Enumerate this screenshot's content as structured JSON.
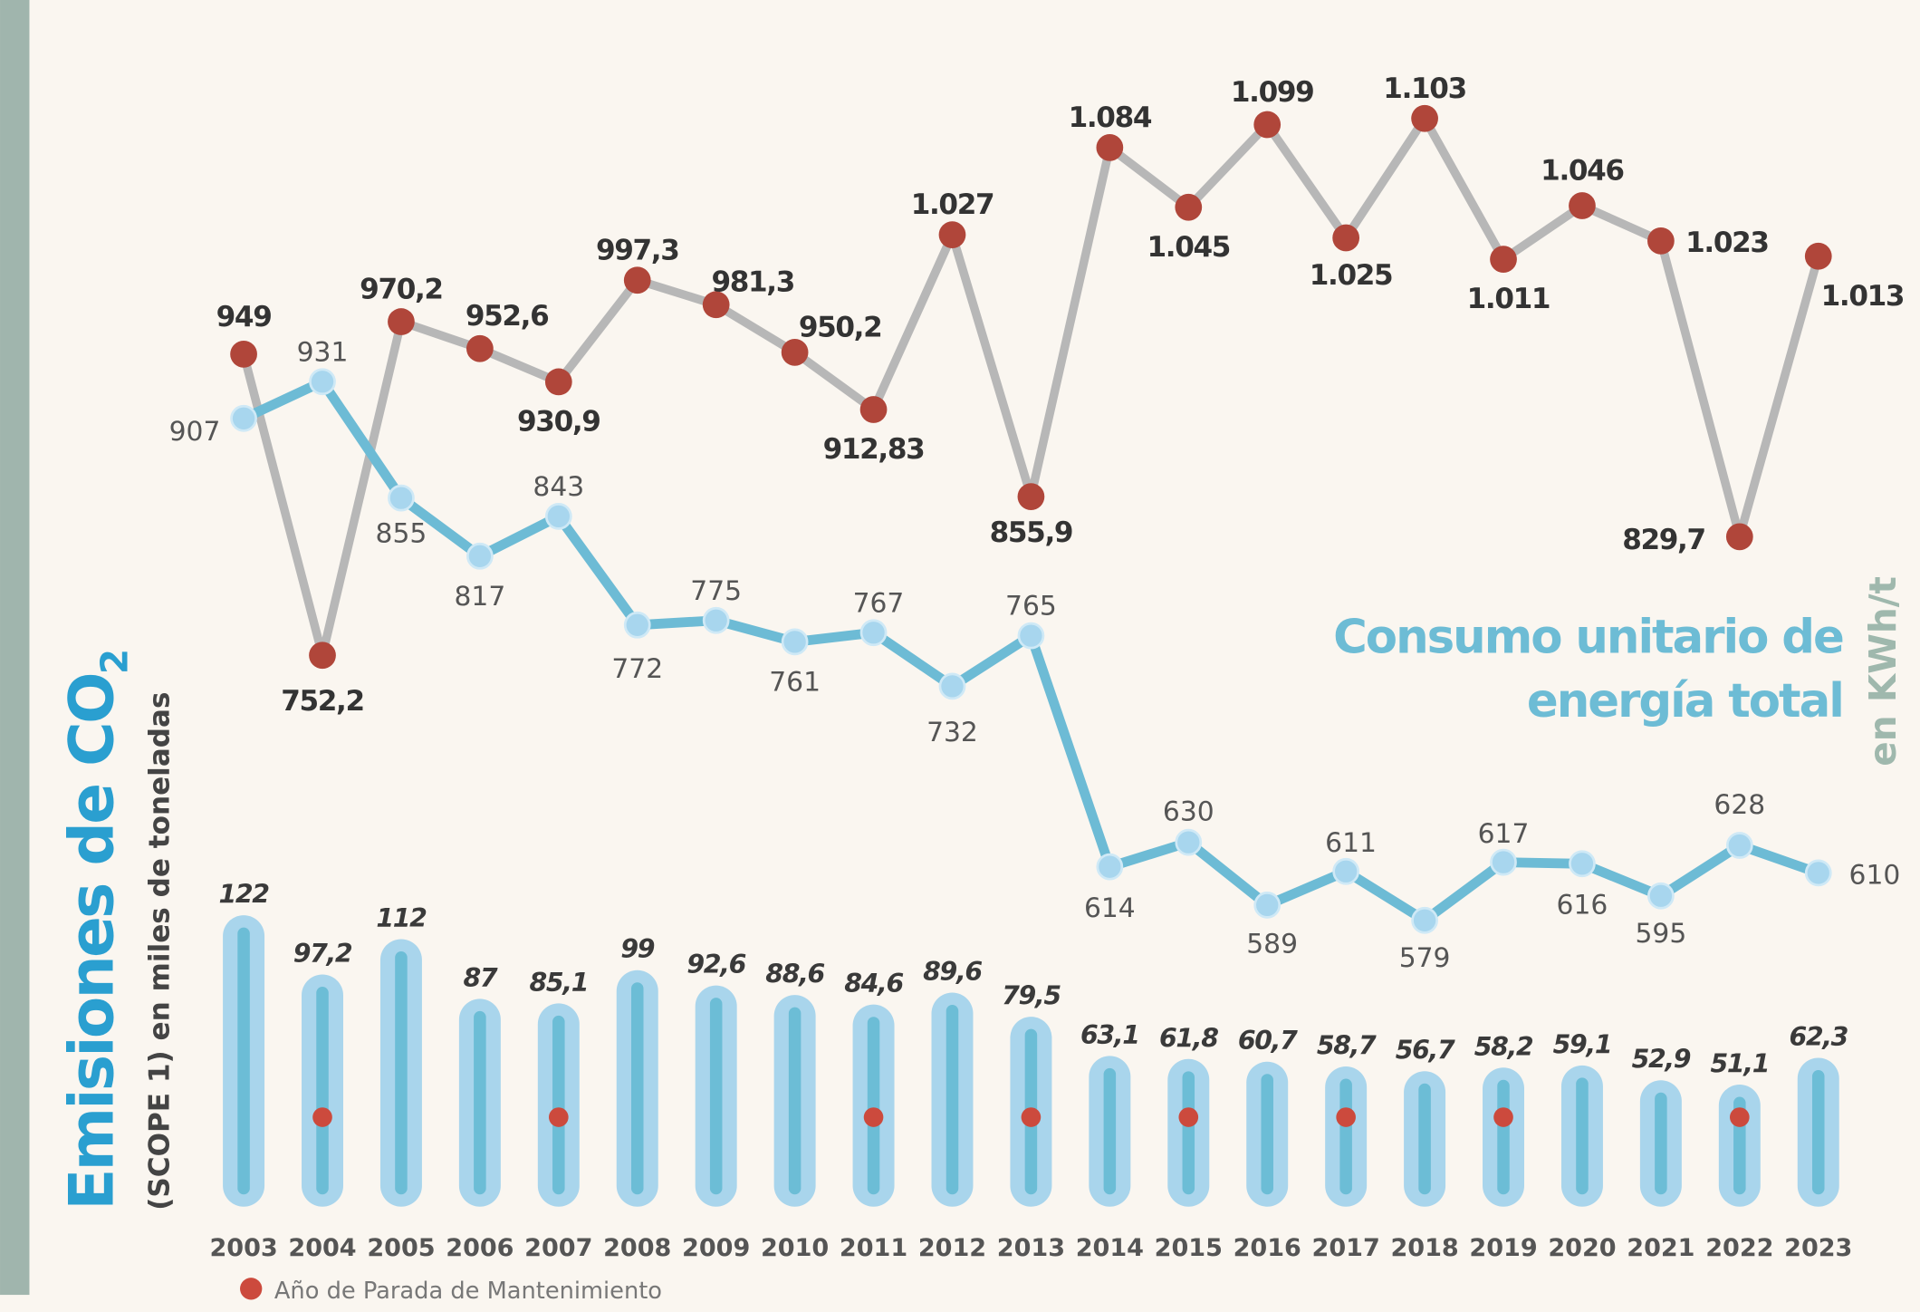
{
  "chart_data": {
    "type": "line",
    "title": "Consumo unitario de energía total",
    "y_label": "en KWh/t",
    "y2_label": {
      "main": "Emisiones de CO",
      "sub": "2",
      "note": "(SCOPE 1) en miles de toneladas"
    },
    "categories": [
      "2003",
      "2004",
      "2005",
      "2006",
      "2007",
      "2008",
      "2009",
      "2010",
      "2011",
      "2012",
      "2013",
      "2014",
      "2015",
      "2016",
      "2017",
      "2018",
      "2019",
      "2020",
      "2021",
      "2022",
      "2023"
    ],
    "ylim": [
      500,
      1150
    ],
    "y2lim": [
      0,
      130
    ],
    "legend": {
      "label": "Año de Parada de Mantenimiento",
      "color": "#cc4a3d"
    },
    "series": [
      {
        "color": "#b7b7b7",
        "marker_color": "#b0463a",
        "values": [
          949,
          752.2,
          970.2,
          952.6,
          930.9,
          997.3,
          981.3,
          950.2,
          912.83,
          1027,
          855.9,
          1084,
          1045,
          1099,
          1025,
          1103,
          1011,
          1046,
          1023,
          829.7,
          1013
        ],
        "value_labels": [
          "949",
          "752,2",
          "970,2",
          "952,6",
          "930,9",
          "997,3",
          "981,3",
          "950,2",
          "912,83",
          "1.027",
          "855,9",
          "1.084",
          "1.045",
          "1.099",
          "1.025",
          "1.103",
          "1.011",
          "1.046",
          "1.023",
          "829,7",
          "1.013"
        ]
      },
      {
        "color": "#6dbbd5",
        "marker_color": "#a8d6ee",
        "values": [
          907,
          931,
          855,
          817,
          843,
          772,
          775,
          761,
          767,
          732,
          765,
          614,
          630,
          589,
          611,
          579,
          617,
          616,
          595,
          628,
          610
        ]
      },
      {
        "type": "bar",
        "axis": "y2",
        "color": "#a9d5ec",
        "core_color": "#6cbdd6",
        "values": [
          122,
          97.2,
          112,
          87,
          85.1,
          99,
          92.6,
          88.6,
          84.6,
          89.6,
          79.5,
          63.1,
          61.8,
          60.7,
          58.7,
          56.7,
          58.2,
          59.1,
          52.9,
          51.1,
          62.3
        ],
        "value_labels": [
          "122",
          "97,2",
          "112",
          "87",
          "85,1",
          "99",
          "92,6",
          "88,6",
          "84,6",
          "89,6",
          "79,5",
          "63,1",
          "61,8",
          "60,7",
          "58,7",
          "56,7",
          "58,2",
          "59,1",
          "52,9",
          "51,1",
          "62,3"
        ],
        "maintenance": [
          false,
          true,
          false,
          false,
          true,
          false,
          false,
          false,
          true,
          false,
          true,
          false,
          true,
          false,
          true,
          false,
          true,
          false,
          false,
          true,
          false
        ]
      }
    ]
  }
}
